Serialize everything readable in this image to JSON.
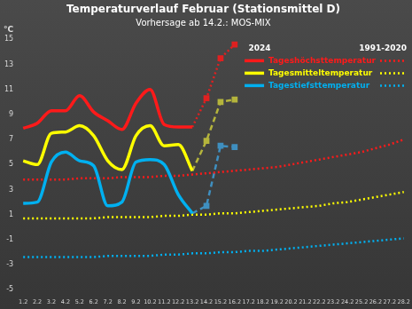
{
  "chart_data": {
    "type": "line",
    "title": "Temperaturverlauf Februar (Stationsmittel D)",
    "subtitle": "Vorhersage ab 14.2.: MOS-MIX",
    "ylabel": "°C",
    "annotations": [
      "2024",
      "1991-2020"
    ],
    "legend": "top-right",
    "grid": false,
    "categories": [
      "1.2",
      "2.2",
      "3.2",
      "4.2",
      "5.2",
      "6.2",
      "7.2",
      "8.2",
      "9.2",
      "10.2",
      "11.2",
      "12.2",
      "13.2",
      "14.2",
      "15.2",
      "16.2",
      "17.2",
      "18.2",
      "19.2",
      "20.2",
      "21.2",
      "22.2",
      "23.2",
      "24.2",
      "25.2",
      "26.2",
      "27.2",
      "28.2"
    ],
    "ylim": [
      -5,
      15
    ],
    "yticks": [
      -5,
      -3,
      -1,
      1,
      3,
      5,
      7,
      9,
      11,
      13,
      15
    ],
    "series": [
      {
        "name": "Tageshöchsttemperatur",
        "color": "#ff1a1a",
        "line_style": "solid",
        "values": [
          7.9,
          8.3,
          9.3,
          9.3,
          10.5,
          9.2,
          8.5,
          7.8,
          9.9,
          11.0,
          8.2,
          8.0,
          8.0,
          null,
          null,
          null,
          null,
          null,
          null,
          null,
          null,
          null,
          null,
          null,
          null,
          null,
          null,
          null
        ]
      },
      {
        "name": "Tagesmitteltemperatur",
        "color": "#ffff00",
        "line_style": "solid",
        "values": [
          5.3,
          5.0,
          7.5,
          7.6,
          8.1,
          7.3,
          5.3,
          4.6,
          7.3,
          8.1,
          6.5,
          6.6,
          4.5,
          null,
          null,
          null,
          null,
          null,
          null,
          null,
          null,
          null,
          null,
          null,
          null,
          null,
          null,
          null
        ]
      },
      {
        "name": "Tagestiefsttemperatur",
        "color": "#00b0f0",
        "line_style": "solid",
        "values": [
          1.9,
          2.0,
          5.2,
          6.0,
          5.3,
          4.9,
          1.7,
          2.0,
          5.2,
          5.4,
          5.0,
          2.6,
          1.1,
          null,
          null,
          null,
          null,
          null,
          null,
          null,
          null,
          null,
          null,
          null,
          null,
          null,
          null,
          null
        ]
      },
      {
        "color": "#ff1a1a",
        "line_style": "dotted",
        "values": [
          3.8,
          3.8,
          3.8,
          3.8,
          3.9,
          3.9,
          3.9,
          4.0,
          4.0,
          4.0,
          4.1,
          4.1,
          4.2,
          4.3,
          4.4,
          4.5,
          4.6,
          4.7,
          4.8,
          5.0,
          5.2,
          5.4,
          5.6,
          5.8,
          6.0,
          6.3,
          6.6,
          7.0
        ]
      },
      {
        "color": "#ffff00",
        "line_style": "dotted",
        "values": [
          0.7,
          0.7,
          0.7,
          0.7,
          0.7,
          0.7,
          0.8,
          0.8,
          0.8,
          0.8,
          0.9,
          0.9,
          1.0,
          1.0,
          1.1,
          1.1,
          1.2,
          1.3,
          1.4,
          1.5,
          1.6,
          1.7,
          1.9,
          2.0,
          2.2,
          2.4,
          2.6,
          2.8
        ]
      },
      {
        "color": "#00b0f0",
        "line_style": "dotted",
        "values": [
          -2.4,
          -2.4,
          -2.4,
          -2.4,
          -2.4,
          -2.4,
          -2.3,
          -2.3,
          -2.3,
          -2.3,
          -2.2,
          -2.2,
          -2.1,
          -2.1,
          -2.0,
          -2.0,
          -1.9,
          -1.9,
          -1.8,
          -1.7,
          -1.6,
          -1.5,
          -1.4,
          -1.3,
          -1.2,
          -1.1,
          -1.0,
          -0.9
        ]
      },
      {
        "color": "#e02020",
        "line_style": "dotted",
        "marker": "rect",
        "values": [
          null,
          null,
          null,
          null,
          null,
          null,
          null,
          null,
          null,
          null,
          null,
          null,
          8.0,
          10.3,
          13.5,
          14.6,
          null,
          null,
          null,
          null,
          null,
          null,
          null,
          null,
          null,
          null,
          null,
          null
        ]
      },
      {
        "color": "#b4b43c",
        "line_style": "dashed",
        "marker": "rect",
        "values": [
          null,
          null,
          null,
          null,
          null,
          null,
          null,
          null,
          null,
          null,
          null,
          null,
          4.5,
          6.9,
          10.0,
          10.2,
          null,
          null,
          null,
          null,
          null,
          null,
          null,
          null,
          null,
          null,
          null,
          null
        ]
      },
      {
        "color": "#3f8fbf",
        "line_style": "dashed",
        "marker": "rect",
        "values": [
          null,
          null,
          null,
          null,
          null,
          null,
          null,
          null,
          null,
          null,
          null,
          null,
          1.1,
          1.7,
          6.5,
          6.4,
          null,
          null,
          null,
          null,
          null,
          null,
          null,
          null,
          null,
          null,
          null,
          null
        ]
      }
    ]
  }
}
